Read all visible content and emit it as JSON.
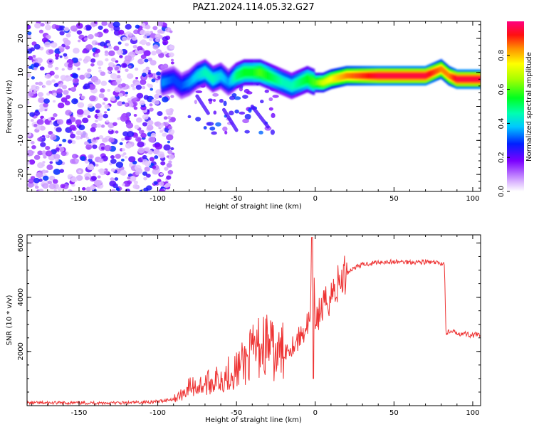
{
  "title": "PAZ1.2024.114.05.32.G27",
  "chart_data": [
    {
      "type": "heatmap",
      "xlabel": "Height of straight line (km)",
      "ylabel": "Frequency (Hz)",
      "xlim": [
        -183,
        105
      ],
      "ylim": [
        -25,
        25
      ],
      "xticks": [
        -150,
        -100,
        -50,
        0,
        50,
        100
      ],
      "yticks": [
        -20,
        -10,
        0,
        10,
        20
      ],
      "colorbar": {
        "label": "Normalized spectral amplitude",
        "range": [
          0,
          1
        ],
        "ticks": [
          "0.0",
          "0.2",
          "0.4",
          "0.6",
          "0.8"
        ]
      },
      "ridge": {
        "description_x": [
          -97,
          -90,
          -85,
          -80,
          -75,
          -70,
          -65,
          -60,
          -55,
          -50,
          -45,
          -40,
          -35,
          -30,
          -25,
          -20,
          -15,
          -10,
          -5,
          0,
          5,
          10,
          20,
          30,
          40,
          50,
          60,
          70,
          75,
          80,
          85,
          90,
          95,
          100,
          105
        ],
        "frequency": [
          7,
          8,
          6,
          7,
          9,
          10,
          8,
          9,
          7,
          9,
          10,
          10,
          10,
          9,
          8,
          7,
          6,
          7,
          8,
          7,
          7,
          8,
          9,
          9,
          9,
          9,
          9,
          9,
          10,
          11,
          9,
          8,
          8,
          8,
          8
        ],
        "amplitude": [
          0.35,
          0.3,
          0.3,
          0.35,
          0.4,
          0.45,
          0.45,
          0.4,
          0.35,
          0.5,
          0.55,
          0.55,
          0.6,
          0.55,
          0.5,
          0.45,
          0.45,
          0.5,
          0.55,
          0.6,
          0.7,
          0.75,
          0.85,
          0.9,
          0.95,
          0.95,
          0.95,
          0.95,
          0.9,
          0.85,
          0.85,
          0.95,
          0.95,
          0.95,
          0.95
        ]
      }
    },
    {
      "type": "line",
      "xlabel": "Height of straight line (km)",
      "ylabel": "SNR (10 * v/v)",
      "xlim": [
        -183,
        105
      ],
      "ylim": [
        0,
        6300
      ],
      "xticks": [
        -150,
        -100,
        -50,
        0,
        50,
        100
      ],
      "yticks": [
        2000,
        4000,
        6000
      ],
      "series": [
        {
          "color": "#ee3333",
          "x": [
            -183,
            -160,
            -140,
            -120,
            -100,
            -90,
            -85,
            -80,
            -75,
            -70,
            -65,
            -60,
            -55,
            -50,
            -45,
            -40,
            -35,
            -30,
            -25,
            -20,
            -15,
            -10,
            -5,
            -3,
            -2,
            0,
            5,
            10,
            15,
            20,
            25,
            30,
            40,
            50,
            60,
            70,
            80,
            82,
            83,
            90,
            100,
            105
          ],
          "y": [
            100,
            100,
            100,
            100,
            150,
            250,
            400,
            700,
            700,
            800,
            900,
            1000,
            1200,
            1300,
            1600,
            1900,
            2200,
            2300,
            1800,
            2000,
            2200,
            2500,
            3000,
            3100,
            6200,
            3200,
            3600,
            4100,
            4500,
            4900,
            5100,
            5200,
            5300,
            5300,
            5300,
            5300,
            5250,
            5250,
            2700,
            2700,
            2600,
            2600
          ]
        }
      ]
    }
  ]
}
